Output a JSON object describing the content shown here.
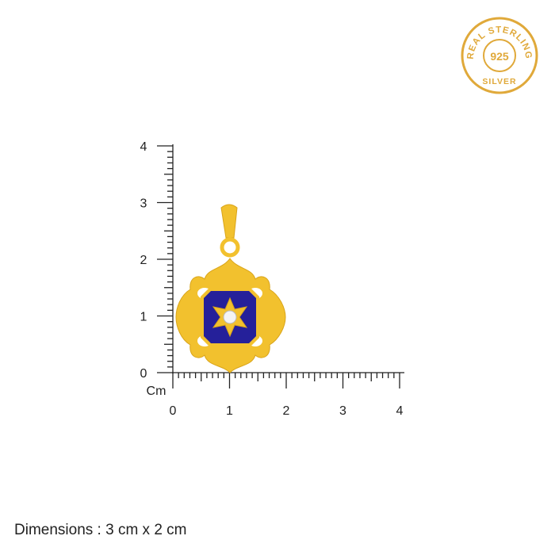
{
  "badge": {
    "top_text": "REAL STERLING",
    "center_text": "925",
    "bottom_text": "SILVER",
    "color": "#e0a93a"
  },
  "ruler": {
    "unit_label": "Cm",
    "vertical_ticks": [
      "0",
      "1",
      "2",
      "3",
      "4"
    ],
    "horizontal_ticks": [
      "0",
      "1",
      "2",
      "3",
      "4"
    ],
    "minor_divisions_per_unit": 10
  },
  "product": {
    "metal_color": "#f2c12e",
    "enamel_color": "#25209a",
    "stone": "white-round-crystal"
  },
  "caption": "Dimensions : 3 cm x 2 cm"
}
